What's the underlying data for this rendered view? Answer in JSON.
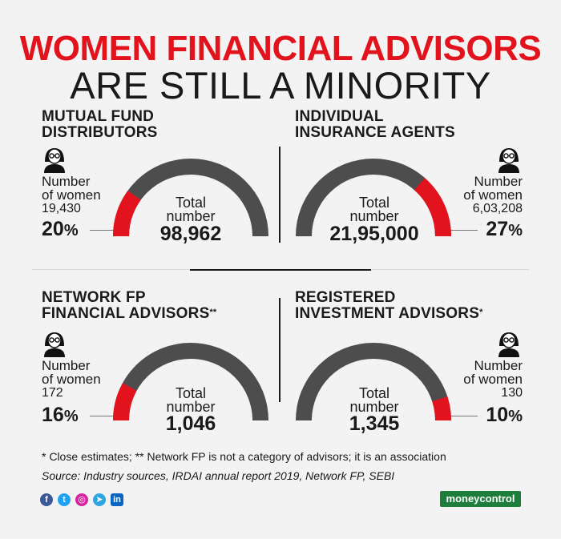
{
  "header": {
    "title_line1": "WOMEN FINANCIAL ADVISORS",
    "title_line2": "ARE STILL A MINORITY"
  },
  "colors": {
    "accent_red": "#e2131c",
    "gauge_gray": "#4d4d4d",
    "text_dark": "#1a1a1a",
    "brand_green": "#1d7d3a"
  },
  "chart_data": [
    {
      "type": "gauge",
      "title_line1": "MUTUAL FUND",
      "title_line2": "DISTRIBUTORS",
      "title_suffix": "",
      "women_label_line1": "Number",
      "women_label_line2": "of women",
      "women_count": "19,430",
      "women_percent": "20",
      "percent_sign": "%",
      "total_label_line1": "Total",
      "total_label_line2": "number",
      "total_value": "98,962",
      "share": 0.2,
      "red_side": "left",
      "icon": "woman-avatar-icon"
    },
    {
      "type": "gauge",
      "title_line1": "INDIVIDUAL",
      "title_line2": "INSURANCE AGENTS",
      "title_suffix": "",
      "women_label_line1": "Number",
      "women_label_line2": "of women",
      "women_count": "6,03,208",
      "women_percent": "27",
      "percent_sign": "%",
      "total_label_line1": "Total",
      "total_label_line2": "number",
      "total_value": "21,95,000",
      "share": 0.27,
      "red_side": "right",
      "icon": "woman-avatar-icon"
    },
    {
      "type": "gauge",
      "title_line1": "NETWORK FP",
      "title_line2": "FINANCIAL ADVISORS",
      "title_suffix": "**",
      "women_label_line1": "Number",
      "women_label_line2": "of women",
      "women_count": "172",
      "women_percent": "16",
      "percent_sign": "%",
      "total_label_line1": "Total",
      "total_label_line2": "number",
      "total_value": "1,046",
      "share": 0.16,
      "red_side": "left",
      "icon": "woman-avatar-icon"
    },
    {
      "type": "gauge",
      "title_line1": "REGISTERED",
      "title_line2": "INVESTMENT ADVISORS",
      "title_suffix": "*",
      "women_label_line1": "Number",
      "women_label_line2": "of women",
      "women_count": "130",
      "women_percent": "10",
      "percent_sign": "%",
      "total_label_line1": "Total",
      "total_label_line2": "number",
      "total_value": "1,345",
      "share": 0.1,
      "red_side": "right",
      "icon": "woman-avatar-icon"
    }
  ],
  "footer": {
    "note": "* Close estimates; ** Network FP is not a category of advisors;  it is an association",
    "source": "Source: Industry sources, IRDAI annual report 2019, Network FP, SEBI",
    "social_icons": [
      "facebook-icon",
      "twitter-icon",
      "instagram-icon",
      "telegram-icon",
      "linkedin-icon"
    ],
    "brand": "moneycontrol"
  }
}
